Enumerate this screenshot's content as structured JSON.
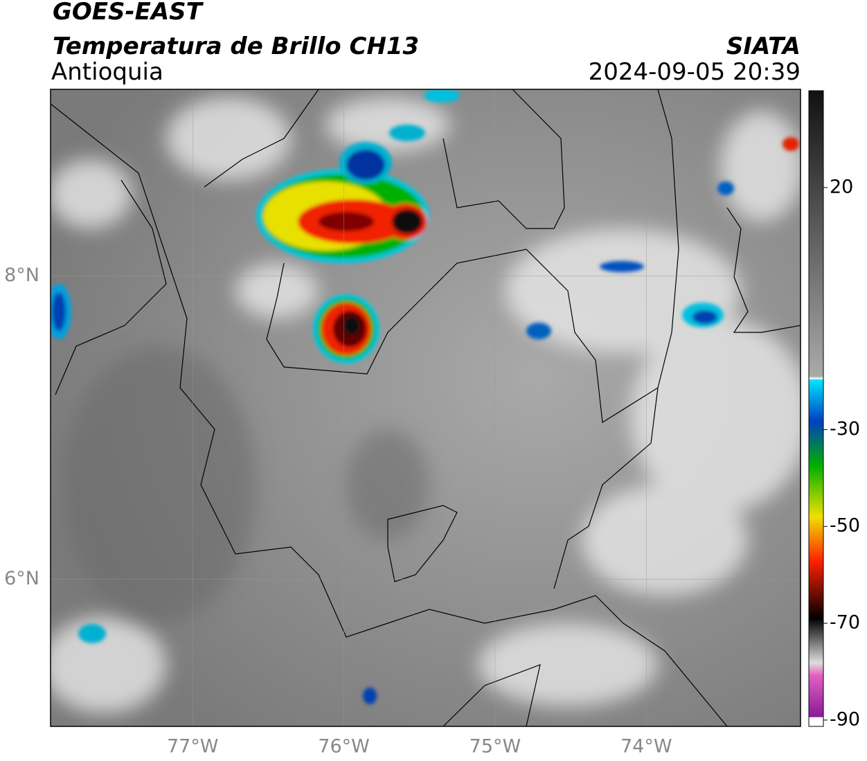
{
  "header": {
    "title": "GOES-EAST",
    "subtitle": "Temperatura de Brillo CH13",
    "source": "SIATA",
    "region": "Antioquia",
    "datetime": "2024-09-05 20:39"
  },
  "map": {
    "xlim": [
      -77.94,
      -72.98
    ],
    "ylim": [
      5.03,
      9.23
    ],
    "xticks": [
      {
        "value": -77,
        "label": "77°W"
      },
      {
        "value": -76,
        "label": "76°W"
      },
      {
        "value": -75,
        "label": "75°W"
      },
      {
        "value": -74,
        "label": "74°W"
      }
    ],
    "yticks": [
      {
        "value": 8,
        "label": "8°N"
      },
      {
        "value": 6,
        "label": "6°N"
      }
    ],
    "grid": true
  },
  "colorbar": {
    "lim": [
      -91.3,
      40
    ],
    "ticks": [
      20,
      -30,
      -50,
      -70,
      -90
    ]
  }
}
